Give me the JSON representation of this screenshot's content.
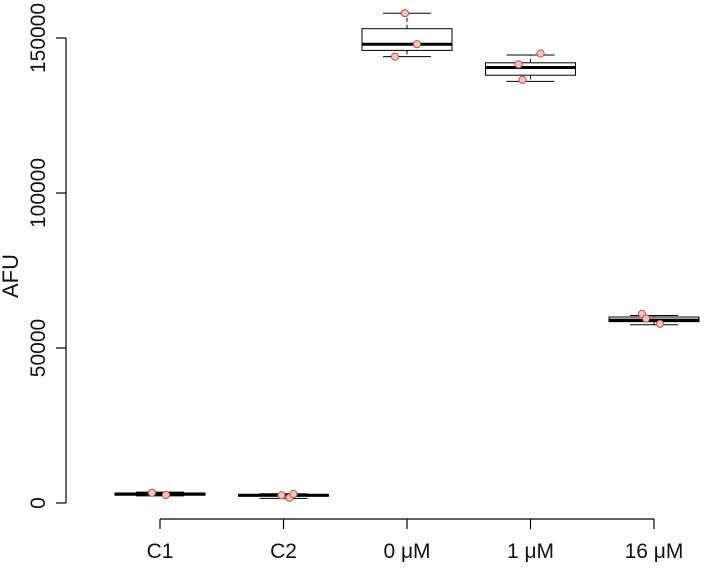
{
  "chart_data": {
    "type": "boxplot",
    "ylabel": "AFU",
    "xlabel": "",
    "categories": [
      "C1",
      "C2",
      "0 μM",
      "1 μM",
      "16 μM"
    ],
    "y_ticks": [
      0,
      50000,
      100000,
      150000
    ],
    "y_tick_labels": [
      "0",
      "50000",
      "100000",
      "150000"
    ],
    "ylim": [
      -2000,
      162000
    ],
    "grid": false,
    "boxes": [
      {
        "category": "C1",
        "whisker_low": 2300,
        "q1": 2500,
        "median": 2900,
        "q3": 3200,
        "whisker_high": 3500
      },
      {
        "category": "C2",
        "whisker_low": 1500,
        "q1": 2200,
        "median": 2500,
        "q3": 2700,
        "whisker_high": 3000
      },
      {
        "category": "0 μM",
        "whisker_low": 144000,
        "q1": 146000,
        "median": 148000,
        "q3": 153000,
        "whisker_high": 158000
      },
      {
        "category": "1 μM",
        "whisker_low": 136000,
        "q1": 138000,
        "median": 140500,
        "q3": 142000,
        "whisker_high": 144500
      },
      {
        "category": "16 μM",
        "whisker_low": 57500,
        "q1": 58500,
        "median": 59000,
        "q3": 60000,
        "whisker_high": 60500
      }
    ],
    "points": [
      {
        "category": "C1",
        "values": [
          3300,
          2600
        ]
      },
      {
        "category": "C2",
        "values": [
          1700,
          2500,
          2900
        ]
      },
      {
        "category": "0 μM",
        "values": [
          158000,
          148000,
          144000
        ]
      },
      {
        "category": "1 μM",
        "values": [
          145000,
          141500,
          136500
        ]
      },
      {
        "category": "16 μM",
        "values": [
          61000,
          59500,
          57800
        ]
      }
    ],
    "colors": {
      "box": "#000000",
      "point_fill": "#f4c6c0",
      "point_stroke": "#c0504d"
    }
  }
}
